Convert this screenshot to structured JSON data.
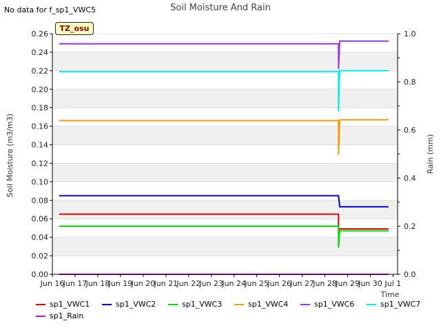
{
  "header": {
    "nodata_text": "No data for f_sp1_VWC5",
    "tz_label": "TZ_osu"
  },
  "chart_data": {
    "type": "line",
    "title": "Soil Moisture And Rain",
    "xlabel": "Time",
    "ylabel": "Soil Moisture (m3/m3)",
    "y2label": "Rain (mm)",
    "ylim": [
      0,
      0.26
    ],
    "y2lim": [
      0,
      1.0
    ],
    "yticks": [
      "0.00",
      "0.02",
      "0.04",
      "0.06",
      "0.08",
      "0.10",
      "0.12",
      "0.14",
      "0.16",
      "0.18",
      "0.20",
      "0.22",
      "0.24",
      "0.26"
    ],
    "y2ticks": [
      "0.0",
      "0.2",
      "0.4",
      "0.6",
      "0.8",
      "1.0"
    ],
    "xlim": [
      0,
      15.2
    ],
    "xticks": [
      {
        "v": 0,
        "label": "Jun 16"
      },
      {
        "v": 1,
        "label": "Jun 17"
      },
      {
        "v": 2,
        "label": "Jun 18"
      },
      {
        "v": 3,
        "label": "Jun 19"
      },
      {
        "v": 4,
        "label": "Jun 20"
      },
      {
        "v": 5,
        "label": "Jun 21"
      },
      {
        "v": 6,
        "label": "Jun 22"
      },
      {
        "v": 7,
        "label": "Jun 23"
      },
      {
        "v": 8,
        "label": "Jun 24"
      },
      {
        "v": 9,
        "label": "Jun 25"
      },
      {
        "v": 10,
        "label": "Jun 26"
      },
      {
        "v": 11,
        "label": "Jun 27"
      },
      {
        "v": 12,
        "label": "Jun 28"
      },
      {
        "v": 13,
        "label": "Jun 29"
      },
      {
        "v": 14,
        "label": "Jun 30"
      },
      {
        "v": 15,
        "label": "Jul 1"
      }
    ],
    "series": [
      {
        "name": "sp1_VWC1",
        "color": "#dd0000",
        "axis": "left",
        "points": [
          [
            0.3,
            0.065
          ],
          [
            12.6,
            0.065
          ],
          [
            12.6,
            0.047
          ],
          [
            12.65,
            0.049
          ],
          [
            14.8,
            0.049
          ]
        ]
      },
      {
        "name": "sp1_VWC2",
        "color": "#0000cc",
        "axis": "left",
        "points": [
          [
            0.3,
            0.085
          ],
          [
            12.6,
            0.085
          ],
          [
            12.65,
            0.073
          ],
          [
            14.8,
            0.073
          ]
        ]
      },
      {
        "name": "sp1_VWC3",
        "color": "#00dd00",
        "axis": "left",
        "points": [
          [
            0.3,
            0.052
          ],
          [
            12.6,
            0.052
          ],
          [
            12.6,
            0.029
          ],
          [
            12.65,
            0.047
          ],
          [
            14.8,
            0.047
          ]
        ]
      },
      {
        "name": "sp1_VWC4",
        "color": "#ff9900",
        "axis": "left",
        "points": [
          [
            0.3,
            0.166
          ],
          [
            12.6,
            0.166
          ],
          [
            12.6,
            0.129
          ],
          [
            12.65,
            0.167
          ],
          [
            14.8,
            0.167
          ]
        ]
      },
      {
        "name": "sp1_VWC6",
        "color": "#9933ee",
        "axis": "left",
        "points": [
          [
            0.3,
            0.249
          ],
          [
            12.6,
            0.249
          ],
          [
            12.6,
            0.222
          ],
          [
            12.65,
            0.252
          ],
          [
            14.8,
            0.252
          ]
        ]
      },
      {
        "name": "sp1_VWC7",
        "color": "#00eeee",
        "axis": "left",
        "points": [
          [
            0.3,
            0.219
          ],
          [
            12.6,
            0.219
          ],
          [
            12.6,
            0.176
          ],
          [
            12.65,
            0.22
          ],
          [
            14.8,
            0.22
          ]
        ]
      },
      {
        "name": "sp1_Rain",
        "color": "#dd00dd",
        "axis": "right",
        "points": [
          [
            0.3,
            0.0
          ],
          [
            14.8,
            0.0
          ]
        ]
      }
    ],
    "legend_position": "bottom"
  }
}
